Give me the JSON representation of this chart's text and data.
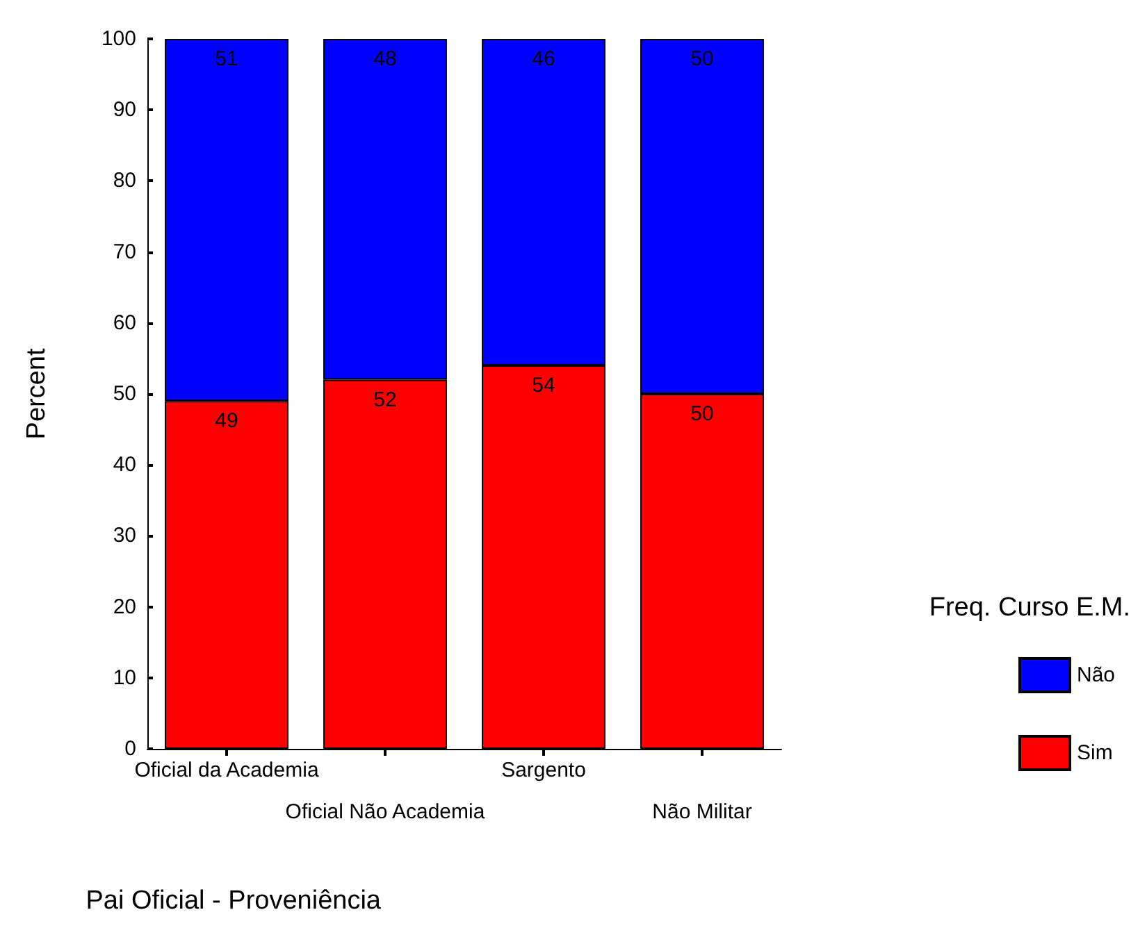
{
  "chart_data": {
    "type": "bar",
    "stacked": true,
    "xlabel": "Pai Oficial - Proveniência",
    "ylabel": "Percent",
    "legend_title": "Freq. Curso E.M.",
    "legend": "right",
    "categories": [
      "Oficial da Academia",
      "Oficial Não Academia",
      "Sargento",
      "Não Militar"
    ],
    "series": [
      {
        "name": "Sim",
        "color": "#ff0000",
        "values": [
          49,
          52,
          54,
          50
        ]
      },
      {
        "name": "Não",
        "color": "#0000ff",
        "values": [
          51,
          48,
          46,
          50
        ]
      }
    ],
    "ylim": [
      0,
      100
    ],
    "yticks": [
      0,
      10,
      20,
      30,
      40,
      50,
      60,
      70,
      80,
      90,
      100
    ],
    "data_labels": true
  }
}
